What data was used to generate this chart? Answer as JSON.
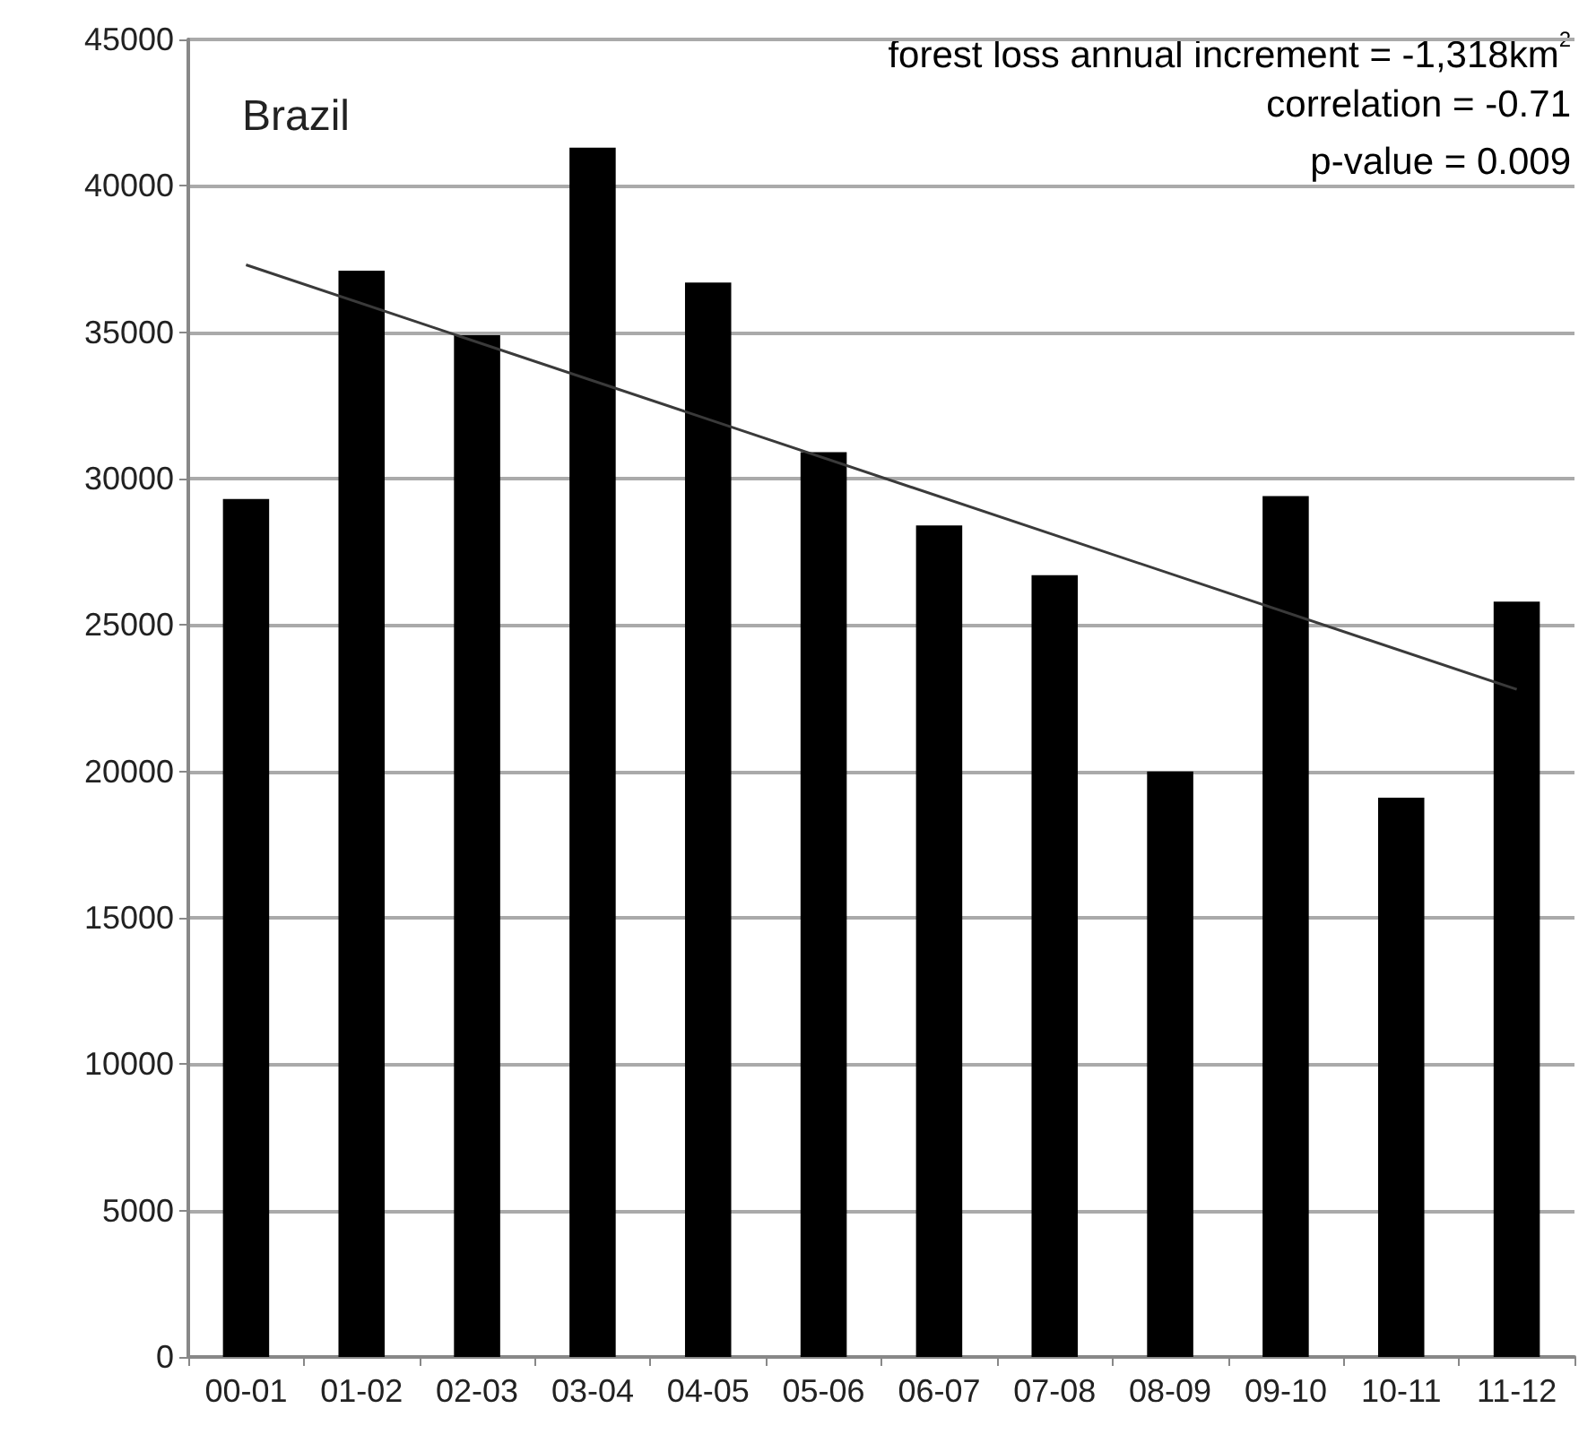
{
  "chart_data": {
    "type": "bar",
    "title": "Brazil",
    "categories": [
      "00-01",
      "01-02",
      "02-03",
      "03-04",
      "04-05",
      "05-06",
      "06-07",
      "07-08",
      "08-09",
      "09-10",
      "10-11",
      "11-12"
    ],
    "series": [
      {
        "color": "#000000",
        "values": [
          29300,
          37100,
          34900,
          41300,
          36700,
          30900,
          28400,
          26700,
          20000,
          29400,
          19100,
          25800
        ]
      },
      {
        "type": "line",
        "color": "#3a3a3a",
        "x": [
          "00-01",
          "11-12"
        ],
        "values": [
          37300,
          22800
        ]
      }
    ],
    "annotations": [
      "forest loss annual increment = -1,318km$^{2}$",
      "correlation = -0.71",
      "p-value = 0.009"
    ],
    "ylim": [
      0,
      45000
    ],
    "yticks": [
      0,
      5000,
      10000,
      15000,
      20000,
      25000,
      30000,
      35000,
      40000,
      45000
    ],
    "grid": "y",
    "marker": "none",
    "line_style": "solid"
  }
}
